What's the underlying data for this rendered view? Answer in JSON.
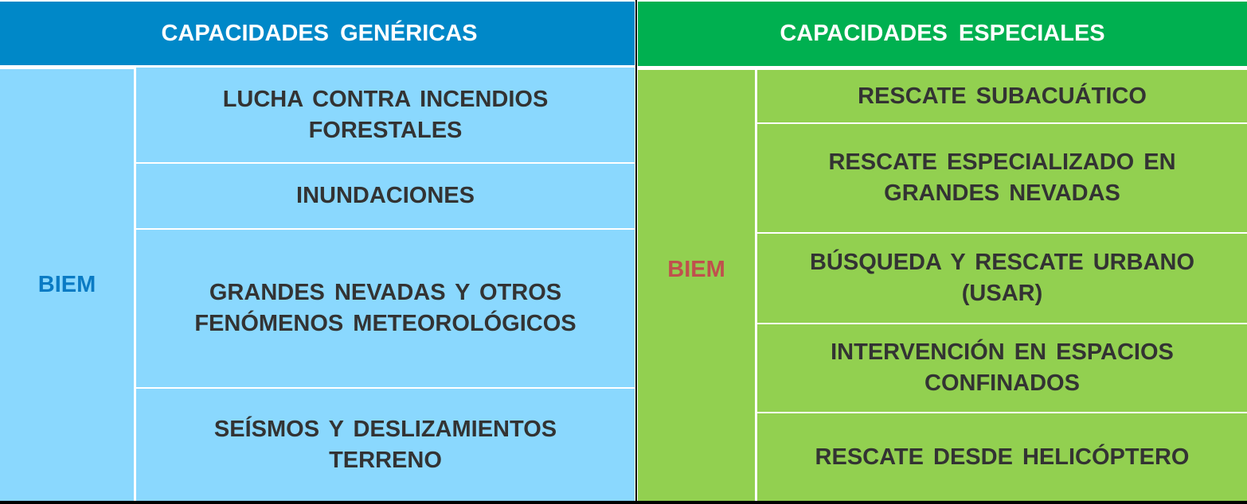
{
  "colors": {
    "generic_header": "#0088C8",
    "generic_body": "#8AD8FE",
    "special_header": "#00B050",
    "special_body": "#92D050",
    "biem_generic": "#0A7BC4",
    "biem_special": "#C0504D",
    "text": "#333333"
  },
  "generic": {
    "title": "CAPACIDADES GENÉRICAS",
    "unit": "BIEM",
    "items": [
      "LUCHA CONTRA INCENDIOS FORESTALES",
      "INUNDACIONES",
      "GRANDES NEVADAS Y OTROS FENÓMENOS METEOROLÓGICOS",
      "SEÍSMOS Y DESLIZAMIENTOS TERRENO"
    ]
  },
  "special": {
    "title": "CAPACIDADES ESPECIALES",
    "unit": "BIEM",
    "items": [
      "RESCATE SUBACUÁTICO",
      "RESCATE ESPECIALIZADO EN GRANDES NEVADAS",
      "BÚSQUEDA Y RESCATE URBANO (USAR)",
      "INTERVENCIÓN EN ESPACIOS CONFINADOS",
      "RESCATE DESDE HELICÓPTERO"
    ]
  }
}
